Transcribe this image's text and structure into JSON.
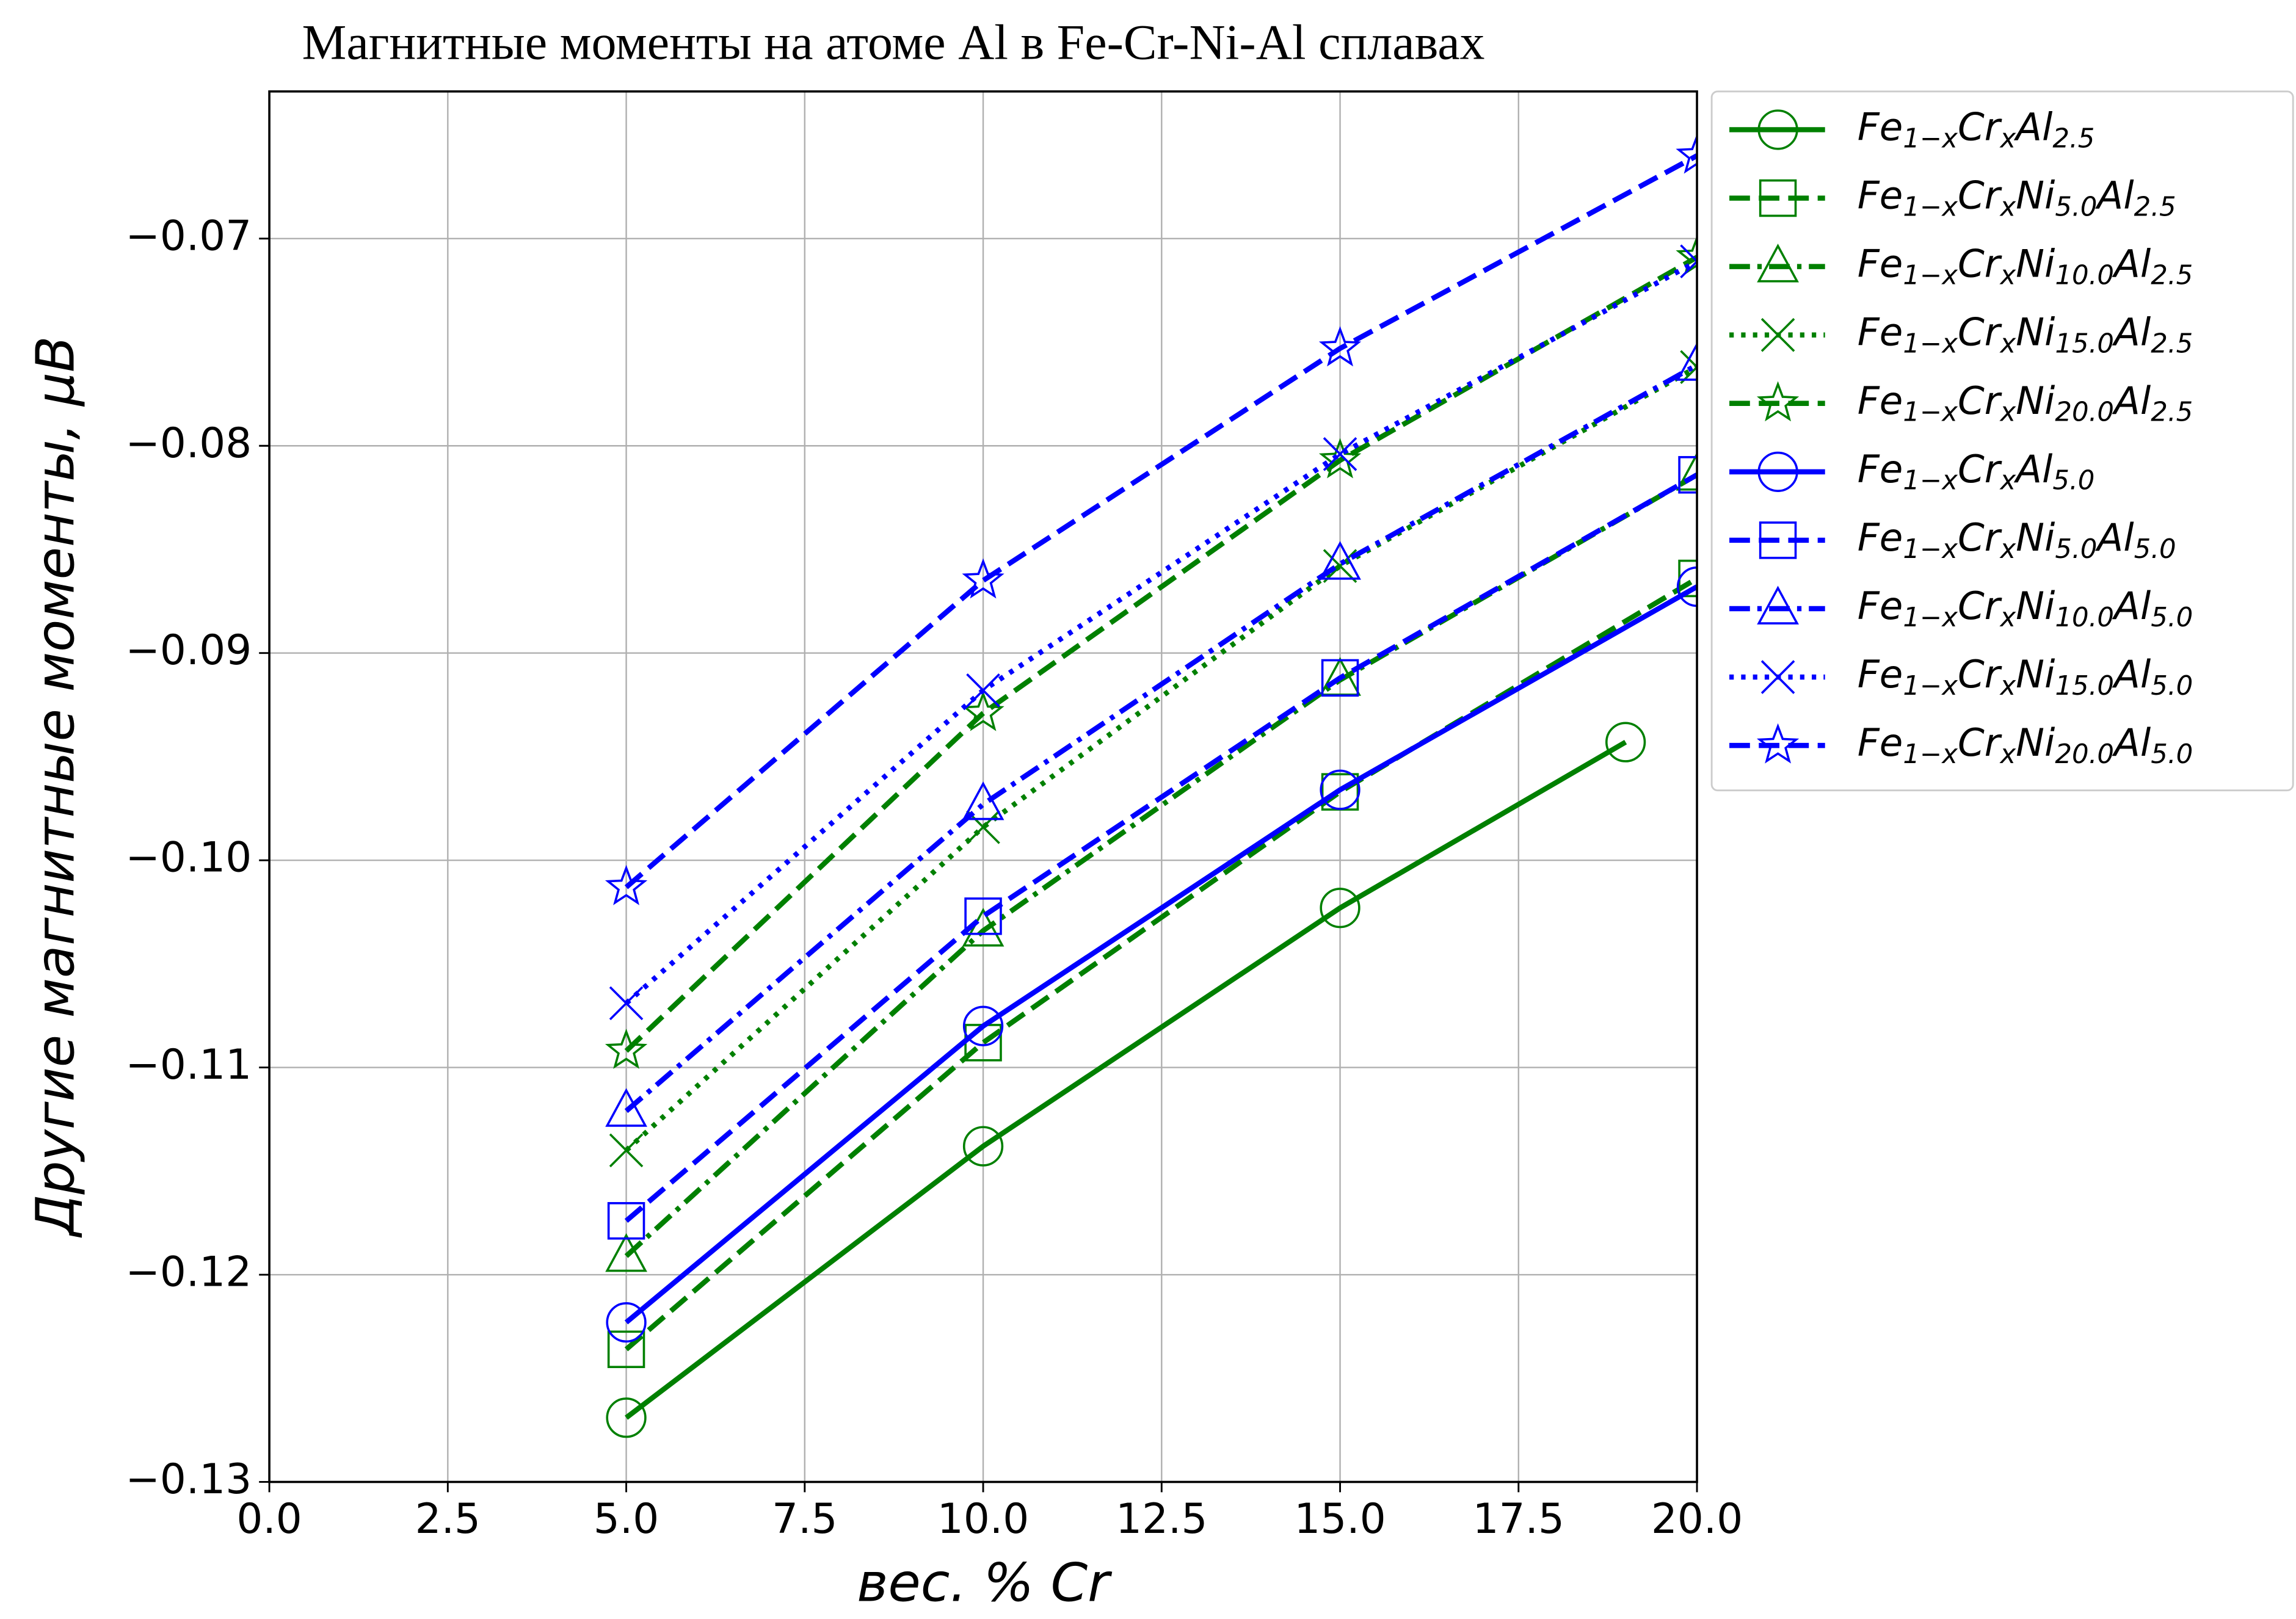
{
  "chart_data": {
    "type": "line",
    "title": "Магнитные моменты на атоме Al в Fe-Cr-Ni-Al сплавах",
    "x_label": "вес. % Cr",
    "y_label": "Другие магнитные моменты, μB",
    "xlim": [
      0,
      20
    ],
    "ylim": [
      -0.13,
      -0.0629
    ],
    "xticks": [
      {
        "value": 0,
        "label": "0.0"
      },
      2.5,
      {
        "value": 5,
        "label": "5.0"
      },
      7.5,
      {
        "value": 10,
        "label": "10.0"
      },
      12.5,
      {
        "value": 15,
        "label": "15.0"
      },
      17.5,
      {
        "value": 20,
        "label": "20.0"
      }
    ],
    "yticks": [
      {
        "value": -0.13,
        "label": "−0.13"
      },
      {
        "value": -0.12,
        "label": "−0.12"
      },
      {
        "value": -0.11,
        "label": "−0.11"
      },
      {
        "value": -0.1,
        "label": "−0.10"
      },
      {
        "value": -0.09,
        "label": "−0.09"
      },
      {
        "value": -0.08,
        "label": "−0.08"
      },
      {
        "value": -0.07,
        "label": "−0.07"
      }
    ],
    "grid": true,
    "legend": "outside-upper-right",
    "series": [
      {
        "name": "Fe1−xCrxAl2.5",
        "color": "#008000",
        "linestyle": "solid",
        "marker": "circle",
        "x": [
          5,
          10,
          15,
          19
        ],
        "values": [
          -0.1269,
          -0.1138,
          -0.1023,
          -0.0943
        ]
      },
      {
        "name": "Fe1−xCrxNi5.0Al2.5",
        "color": "#008000",
        "linestyle": "dashed",
        "marker": "square",
        "x": [
          5,
          10,
          15,
          20
        ],
        "values": [
          -0.1236,
          -0.1088,
          -0.0967,
          -0.0864
        ]
      },
      {
        "name": "Fe1−xCrxNi10.0Al2.5",
        "color": "#008000",
        "linestyle": "dashdot",
        "marker": "triangle",
        "x": [
          5,
          10,
          15,
          20
        ],
        "values": [
          -0.1191,
          -0.1034,
          -0.0913,
          -0.0814
        ]
      },
      {
        "name": "Fe1−xCrxNi15.0Al2.5",
        "color": "#008000",
        "linestyle": "dotted",
        "marker": "x",
        "x": [
          5,
          10,
          15,
          20
        ],
        "values": [
          -0.114,
          -0.0984,
          -0.0858,
          -0.0762
        ]
      },
      {
        "name": "Fe1−xCrxNi20.0Al2.5",
        "color": "#008000",
        "linestyle": "dashed",
        "marker": "star",
        "x": [
          5,
          10,
          15,
          20
        ],
        "values": [
          -0.1092,
          -0.0929,
          -0.0807,
          -0.0709
        ]
      },
      {
        "name": "Fe1−xCrxAl5.0",
        "color": "#0000ff",
        "linestyle": "solid",
        "marker": "circle",
        "x": [
          5,
          10,
          15,
          20
        ],
        "values": [
          -0.1223,
          -0.108,
          -0.0966,
          -0.0868
        ]
      },
      {
        "name": "Fe1−xCrxNi5.0Al5.0",
        "color": "#0000ff",
        "linestyle": "dashed",
        "marker": "square",
        "x": [
          5,
          10,
          15,
          20
        ],
        "values": [
          -0.1174,
          -0.1027,
          -0.0912,
          -0.0814
        ]
      },
      {
        "name": "Fe1−xCrxNi10.0Al5.0",
        "color": "#0000ff",
        "linestyle": "dashdot",
        "marker": "triangle",
        "x": [
          5,
          10,
          15,
          20
        ],
        "values": [
          -0.1121,
          -0.0973,
          -0.0857,
          -0.0761
        ]
      },
      {
        "name": "Fe1−xCrxNi15.0Al5.0",
        "color": "#0000ff",
        "linestyle": "dotted",
        "marker": "x",
        "x": [
          5,
          10,
          15,
          20
        ],
        "values": [
          -0.1069,
          -0.0918,
          -0.0804,
          -0.0711
        ]
      },
      {
        "name": "Fe1−xCrxNi20.0Al5.0",
        "color": "#0000ff",
        "linestyle": "dashed",
        "marker": "star",
        "x": [
          5,
          10,
          15,
          20
        ],
        "values": [
          -0.1013,
          -0.0865,
          -0.0753,
          -0.066
        ]
      }
    ]
  }
}
